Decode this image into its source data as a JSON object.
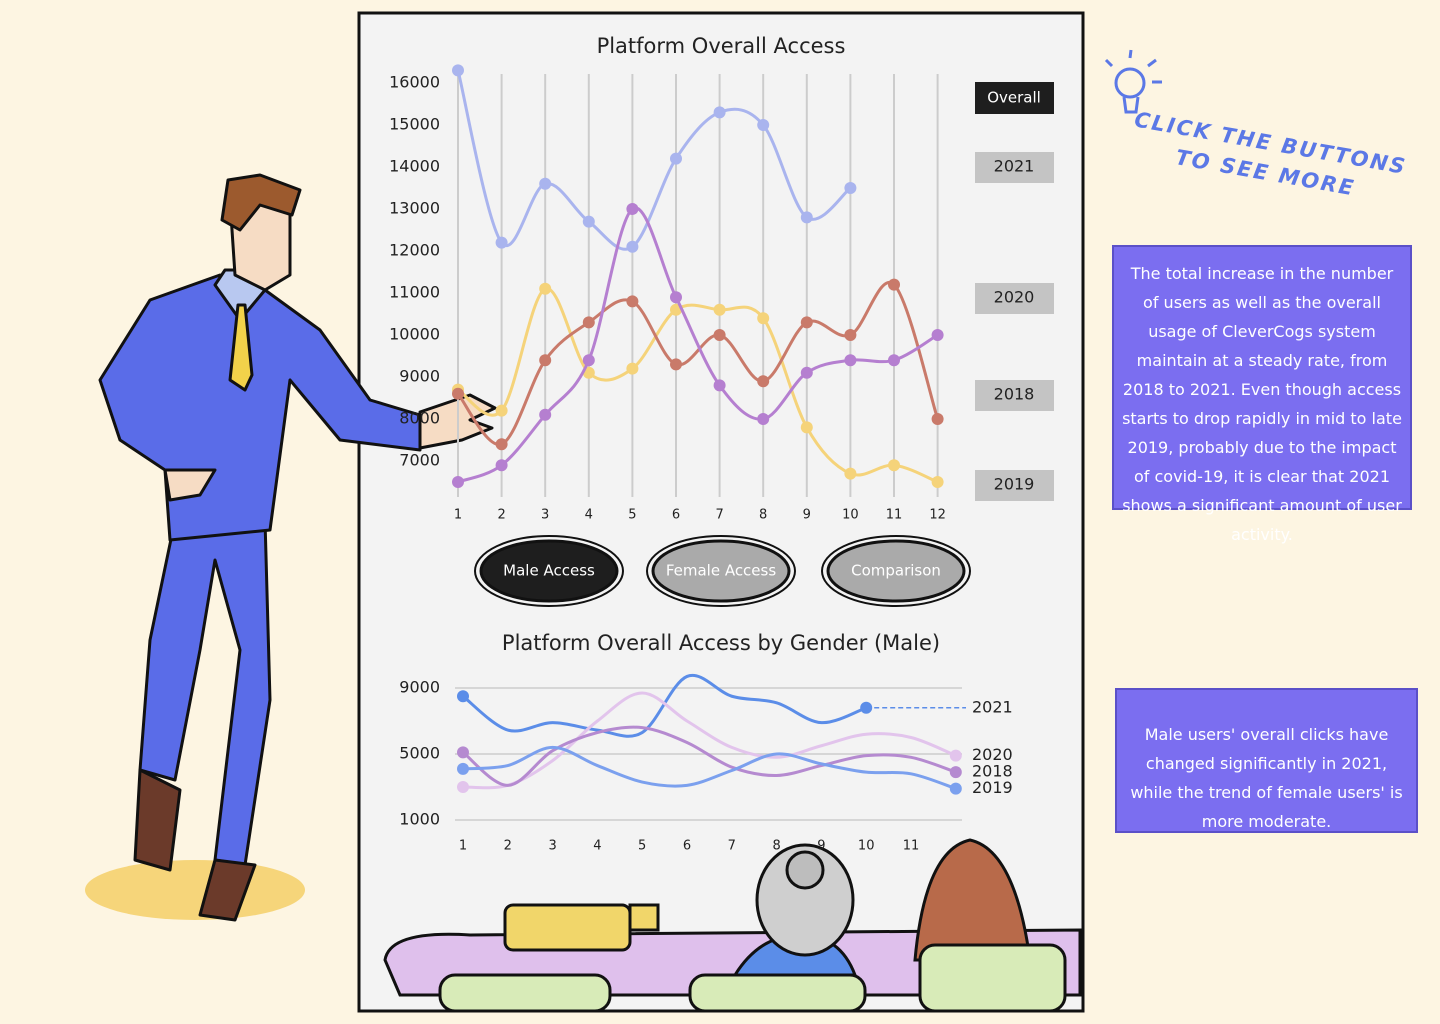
{
  "hint": [
    "CLICK THE BUTTONS",
    "TO SEE MORE"
  ],
  "notes": [
    "The total increase in the number of users as well as the overall usage of CleverCogs system maintain at a steady rate, from 2018 to 2021. Even though access starts to drop rapidly in mid to late 2019, probably due to the impact of covid-19, it is clear that 2021 shows a significant amount of user activity.",
    "Male users' overall clicks have changed significantly in 2021, while the trend of female users' is more moderate."
  ],
  "overall_button": "Overall",
  "buttons": [
    "Male Access",
    "Female Access",
    "Comparison"
  ],
  "chart_data": [
    {
      "type": "line",
      "title": "Platform Overall Access",
      "categories": [
        "1",
        "2",
        "3",
        "4",
        "5",
        "6",
        "7",
        "8",
        "9",
        "10",
        "11",
        "12"
      ],
      "ylim": [
        6500,
        16500
      ],
      "yticks": [
        7000,
        8000,
        9000,
        10000,
        11000,
        12000,
        13000,
        14000,
        15000,
        16000
      ],
      "series": [
        {
          "name": "2021",
          "color": "#a9b4ee",
          "values": [
            16300,
            12200,
            13600,
            12700,
            12100,
            14200,
            15300,
            15000,
            12800,
            13500,
            null,
            null
          ]
        },
        {
          "name": "2020",
          "color": "#f5d37a",
          "values": [
            8700,
            8200,
            11100,
            9100,
            9200,
            10600,
            10600,
            10400,
            7800,
            6700,
            6900,
            6500
          ]
        },
        {
          "name": "2018",
          "color": "#c97a6a",
          "values": [
            8600,
            7400,
            9400,
            10300,
            10800,
            9300,
            10000,
            8900,
            10300,
            10000,
            11200,
            8000
          ]
        },
        {
          "name": "2019",
          "color": "#b57fd0",
          "values": [
            6500,
            6900,
            8100,
            9400,
            13000,
            10900,
            8800,
            8000,
            9100,
            9400,
            9400,
            10000
          ]
        }
      ]
    },
    {
      "type": "line",
      "title": "Platform Overall Access by Gender (Male)",
      "categories": [
        "1",
        "2",
        "3",
        "4",
        "5",
        "6",
        "7",
        "8",
        "9",
        "10",
        "11",
        null
      ],
      "ylim": [
        0,
        10000
      ],
      "yticks": [
        1000,
        5000,
        9000
      ],
      "series": [
        {
          "name": "2021",
          "color": "#5b8de8",
          "values": [
            8500,
            6450,
            6900,
            6450,
            6300,
            9700,
            8500,
            8100,
            6900,
            7800,
            null,
            null
          ]
        },
        {
          "name": "2020",
          "color": "#e2c4ec",
          "values": [
            3000,
            3100,
            4600,
            7000,
            8700,
            7000,
            5400,
            4800,
            5500,
            6200,
            6000,
            4900
          ]
        },
        {
          "name": "2018",
          "color": "#b58ad0",
          "values": [
            5100,
            3100,
            5200,
            6300,
            6600,
            5700,
            4200,
            3700,
            4300,
            4900,
            4800,
            3900
          ]
        },
        {
          "name": "2019",
          "color": "#7ba0ee",
          "values": [
            4100,
            4300,
            5400,
            4300,
            3300,
            3100,
            4000,
            5000,
            4400,
            3900,
            3800,
            2900
          ]
        }
      ]
    }
  ]
}
